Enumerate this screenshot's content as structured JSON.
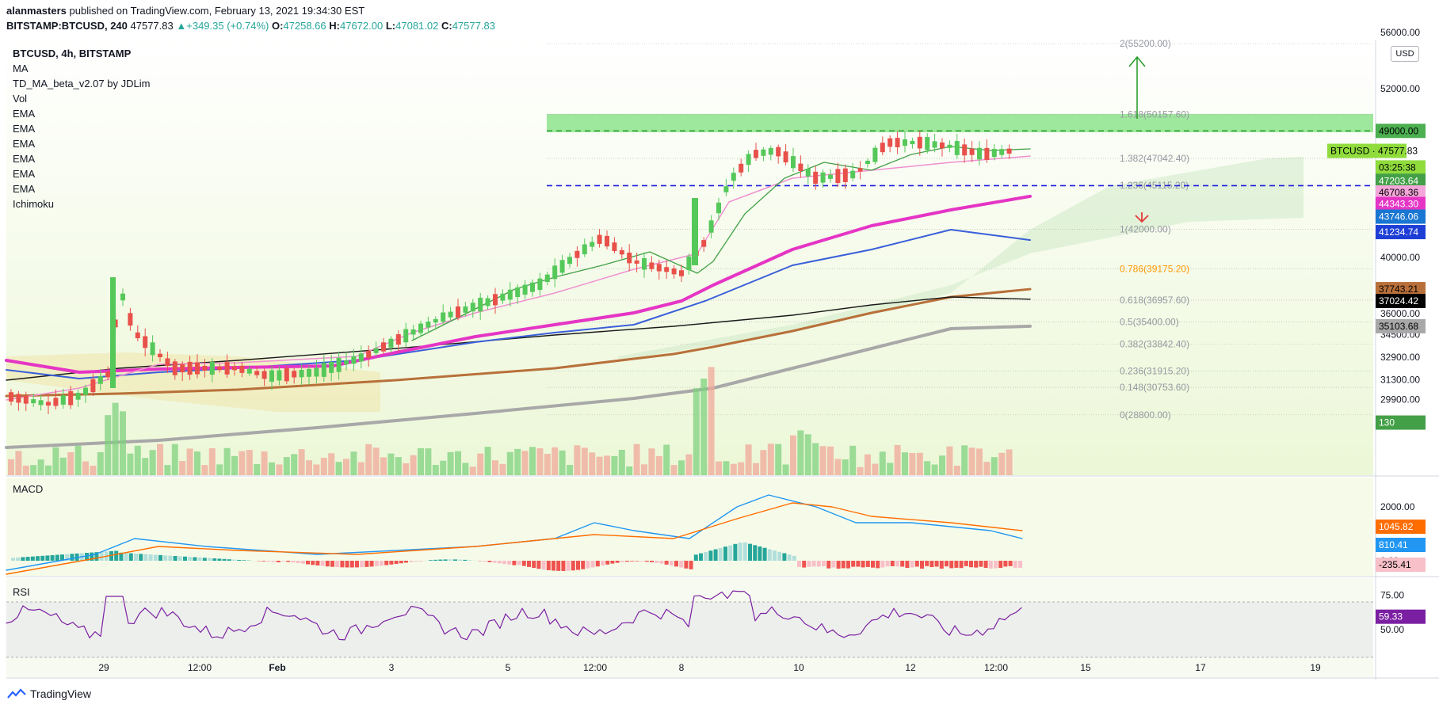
{
  "header": {
    "publisher": "alanmasters",
    "published_text": "published on TradingView.com, February 13, 2021 19:34:30 EST",
    "symbol": "BITSTAMP:BTCUSD, 240",
    "last": "47577.83",
    "change_arrow": "▲",
    "change": "+349.35 (+0.74%)",
    "o_label": "O:",
    "o": "47258.66",
    "h_label": "H:",
    "h": "47672.00",
    "l_label": "L:",
    "l": "47081.02",
    "c_label": "C:",
    "c": "47577.83"
  },
  "legend": {
    "symbol": "BTCUSD, 4h, BITSTAMP",
    "items": [
      "MA",
      "TD_MA_beta_v2.07 by JDLim",
      "Vol",
      "EMA",
      "EMA",
      "EMA",
      "EMA",
      "EMA",
      "EMA",
      "Ichimoku"
    ]
  },
  "currency_badge": "USD",
  "macd_title": "MACD",
  "rsi_title": "RSI",
  "footer": {
    "brand": "TradingView"
  },
  "colors": {
    "up": "#26a69a",
    "down": "#ef5350",
    "bull_candle": "#55c85a",
    "bear_candle": "#e8504a",
    "fib_green_zone": "#7fe07f",
    "ema_magenta": "#e535c5",
    "ema_blue": "#3a5fd9",
    "ema_brown": "#b8703a",
    "ema_black": "#1a1a1a",
    "ema_gray": "#a8a8a8",
    "ema_pink": "#f090d0",
    "macd_line": "#2196f3",
    "signal_line": "#ff6d00",
    "rsi_line": "#7b1fa2"
  },
  "chart_data": {
    "type": "candlestick",
    "x_ticks": [
      "29",
      "12:00",
      "Feb",
      "3",
      "5",
      "12:00",
      "8",
      "10",
      "12",
      "12:00",
      "15",
      "17",
      "19"
    ],
    "price_axis": {
      "ticks": [
        "56000.00",
        "52000.00",
        "40000.00",
        "36000.00",
        "34500.00",
        "32900.00",
        "31300.00",
        "29900.00"
      ],
      "labels": [
        {
          "text": "49000.00",
          "bg": "#4caf50",
          "fg": "#000000",
          "value": 49000
        },
        {
          "text": "BTCUSD · 47577.83",
          "bg": "#8fdc3c",
          "fg": "#000000",
          "value": 47577.83,
          "wide": true
        },
        {
          "text": "03:25:38",
          "bg": "#8fdc3c",
          "fg": "#000000",
          "value": 46400
        },
        {
          "text": "47203.64",
          "bg": "#43a047",
          "fg": "#ffffff",
          "value": 45450
        },
        {
          "text": "46708.36",
          "bg": "#f4a6da",
          "fg": "#000000",
          "value": 44620
        },
        {
          "text": "44343.30",
          "bg": "#e535c5",
          "fg": "#ffffff",
          "value": 43800
        },
        {
          "text": "43746.06",
          "bg": "#1976d2",
          "fg": "#ffffff",
          "value": 42900
        },
        {
          "text": "41234.74",
          "bg": "#1e3fd6",
          "fg": "#ffffff",
          "value": 41800
        },
        {
          "text": "37743.21",
          "bg": "#b8703a",
          "fg": "#000000",
          "value": 37743
        },
        {
          "text": "37024.42",
          "bg": "#000000",
          "fg": "#ffffff",
          "value": 36900
        },
        {
          "text": "35103.68",
          "bg": "#a8a8a8",
          "fg": "#000000",
          "value": 35104
        },
        {
          "text": "130",
          "bg": "#43a047",
          "fg": "#ffffff",
          "value": 28250
        }
      ]
    },
    "fib_levels": [
      {
        "label": "2(55200.00)",
        "value": 55200
      },
      {
        "label": "1.618(50157.60)",
        "value": 50157.6
      },
      {
        "label": "1.382(47042.40)",
        "value": 47042.4
      },
      {
        "label": "1.236(45115.20)",
        "value": 45115.2
      },
      {
        "label": "1(42000.00)",
        "value": 42000
      },
      {
        "label": "0.786(39175.20)",
        "value": 39175.2
      },
      {
        "label": "0.618(36957.60)",
        "value": 36957.6
      },
      {
        "label": "0.5(35400.00)",
        "value": 35400
      },
      {
        "label": "0.382(33842.40)",
        "value": 33842.4
      },
      {
        "label": "0.236(31915.20)",
        "value": 31915.2
      },
      {
        "label": "0.148(30753.60)",
        "value": 30753.6
      },
      {
        "label": "0(28800.00)",
        "value": 28800
      }
    ],
    "horizontal_lines": [
      {
        "value": 49000,
        "color": "#2e9e2e",
        "style": "dashed"
      },
      {
        "value": 45100,
        "color": "#1a1adc",
        "style": "dashed"
      }
    ],
    "zone": {
      "top": 50200,
      "bottom": 48900
    },
    "ema_end_values": {
      "pink": 47203.64,
      "magenta": 44343.3,
      "blue": 41234.74,
      "brown": 37743.21,
      "black": 37024.42,
      "gray": 35103.68
    },
    "macd": {
      "ticks": [
        "2000.00",
        "0.00"
      ],
      "labels": [
        {
          "text": "1045.82",
          "bg": "#ff6d00",
          "fg": "#ffffff"
        },
        {
          "text": "810.41",
          "bg": "#2196f3",
          "fg": "#ffffff"
        },
        {
          "text": "-235.41",
          "bg": "#f8c0c8",
          "fg": "#000000"
        }
      ]
    },
    "rsi": {
      "ticks": [
        "75.00",
        "50.00"
      ],
      "labels": [
        {
          "text": "59.33",
          "bg": "#7b1fa2",
          "fg": "#ffffff"
        }
      ],
      "bands": [
        70,
        30
      ]
    }
  }
}
